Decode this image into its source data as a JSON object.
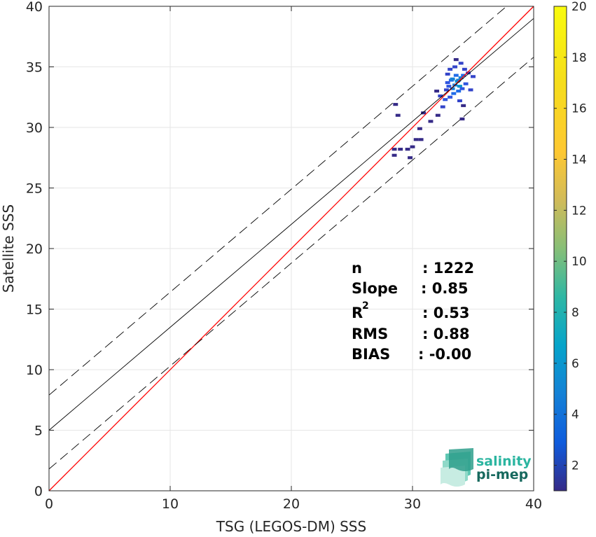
{
  "chart_data": {
    "type": "heatmap",
    "xlabel": "TSG (LEGOS-DM) SSS",
    "ylabel": "Satellite SSS",
    "xlim": [
      0,
      40
    ],
    "ylim": [
      0,
      40
    ],
    "xticks": [
      "0",
      "10",
      "20",
      "30",
      "40"
    ],
    "yticks": [
      "0",
      "5",
      "10",
      "15",
      "20",
      "25",
      "30",
      "35",
      "40"
    ],
    "grid": true,
    "colorbar": {
      "colormap": "parula",
      "range": [
        1,
        20
      ],
      "ticks": [
        "2",
        "4",
        "6",
        "8",
        "10",
        "12",
        "14",
        "16",
        "18",
        "20"
      ]
    },
    "lines": [
      {
        "style": "one-to-one",
        "color": "#ff0000",
        "slope": 1,
        "intercept": 0
      },
      {
        "style": "regression",
        "color": "#000000",
        "slope": 0.85,
        "intercept": 5.0
      },
      {
        "style": "dashed-upper",
        "color": "#000000",
        "slope": 0.85,
        "intercept": 7.9
      },
      {
        "style": "dashed-lower",
        "color": "#000000",
        "slope": 0.85,
        "intercept": 1.8
      }
    ],
    "stats": [
      {
        "label": "n",
        "value": ": 1222"
      },
      {
        "label": "Slope",
        "value": ": 0.85"
      },
      {
        "label": "R",
        "sup": "2",
        "value": ": 0.53"
      },
      {
        "label": "RMS",
        "value": ": 0.88"
      },
      {
        "label": "BIAS",
        "value": ": -0.00"
      }
    ],
    "density_cells": [
      {
        "x": 33.5,
        "y": 33.5,
        "c": 5
      },
      {
        "x": 33.7,
        "y": 33.8,
        "c": 6
      },
      {
        "x": 33.3,
        "y": 33.2,
        "c": 5
      },
      {
        "x": 34.0,
        "y": 34.1,
        "c": 5
      },
      {
        "x": 33.9,
        "y": 33.4,
        "c": 6
      },
      {
        "x": 33.6,
        "y": 34.3,
        "c": 4
      },
      {
        "x": 33.2,
        "y": 33.9,
        "c": 4
      },
      {
        "x": 34.2,
        "y": 34.3,
        "c": 4
      },
      {
        "x": 33.4,
        "y": 32.8,
        "c": 4
      },
      {
        "x": 33.8,
        "y": 33.0,
        "c": 4
      },
      {
        "x": 33.0,
        "y": 33.4,
        "c": 3
      },
      {
        "x": 34.4,
        "y": 33.6,
        "c": 3
      },
      {
        "x": 33.1,
        "y": 32.5,
        "c": 3
      },
      {
        "x": 32.7,
        "y": 32.3,
        "c": 3
      },
      {
        "x": 32.3,
        "y": 32.6,
        "c": 2
      },
      {
        "x": 32.8,
        "y": 33.1,
        "c": 2
      },
      {
        "x": 34.6,
        "y": 34.5,
        "c": 2
      },
      {
        "x": 33.5,
        "y": 35.0,
        "c": 2
      },
      {
        "x": 34.0,
        "y": 35.3,
        "c": 2
      },
      {
        "x": 33.1,
        "y": 34.8,
        "c": 2
      },
      {
        "x": 32.9,
        "y": 34.4,
        "c": 2
      },
      {
        "x": 34.8,
        "y": 33.1,
        "c": 2
      },
      {
        "x": 35.0,
        "y": 34.2,
        "c": 2
      },
      {
        "x": 32.5,
        "y": 31.7,
        "c": 2
      },
      {
        "x": 33.9,
        "y": 32.2,
        "c": 2
      },
      {
        "x": 34.2,
        "y": 31.8,
        "c": 1
      },
      {
        "x": 33.6,
        "y": 35.6,
        "c": 1
      },
      {
        "x": 32.0,
        "y": 33.0,
        "c": 1
      },
      {
        "x": 34.1,
        "y": 30.7,
        "c": 1
      },
      {
        "x": 30.9,
        "y": 31.2,
        "c": 1
      },
      {
        "x": 30.6,
        "y": 29.9,
        "c": 1
      },
      {
        "x": 30.7,
        "y": 29.0,
        "c": 1
      },
      {
        "x": 30.3,
        "y": 29.0,
        "c": 1
      },
      {
        "x": 30.0,
        "y": 28.4,
        "c": 1
      },
      {
        "x": 29.6,
        "y": 28.2,
        "c": 1
      },
      {
        "x": 29.0,
        "y": 28.2,
        "c": 1
      },
      {
        "x": 28.5,
        "y": 28.2,
        "c": 1
      },
      {
        "x": 29.8,
        "y": 27.5,
        "c": 1
      },
      {
        "x": 28.5,
        "y": 27.7,
        "c": 1
      },
      {
        "x": 28.6,
        "y": 31.9,
        "c": 1
      },
      {
        "x": 28.8,
        "y": 31.0,
        "c": 1
      },
      {
        "x": 32.1,
        "y": 31.0,
        "c": 1
      },
      {
        "x": 31.5,
        "y": 30.5,
        "c": 1
      },
      {
        "x": 33.3,
        "y": 34.0,
        "c": 5
      },
      {
        "x": 33.8,
        "y": 33.9,
        "c": 5
      },
      {
        "x": 34.1,
        "y": 33.2,
        "c": 3
      },
      {
        "x": 32.9,
        "y": 33.7,
        "c": 3
      },
      {
        "x": 34.3,
        "y": 34.8,
        "c": 2
      }
    ]
  },
  "logo": {
    "line1": "salinity",
    "line2": "pi-mep",
    "color1": "#2bb5a0",
    "color2": "#17695e"
  }
}
